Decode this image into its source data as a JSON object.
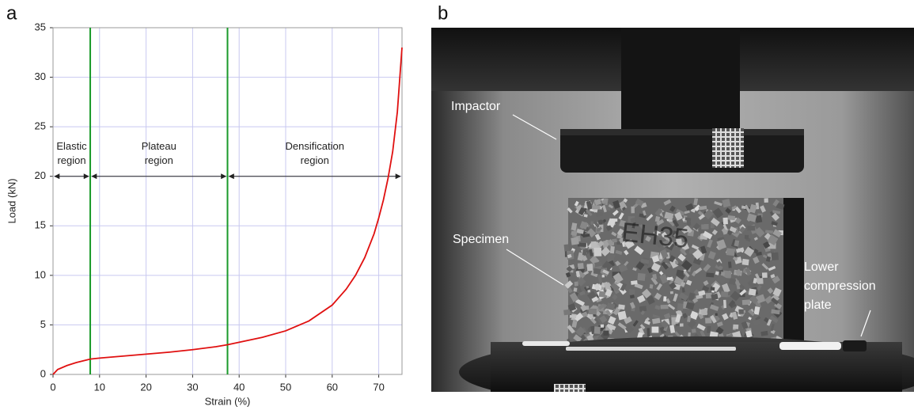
{
  "chart_data": {
    "type": "line",
    "panel_label": "a",
    "x_label": "Strain (%)",
    "y_label": "Load (kN)",
    "x": [
      0,
      1,
      3,
      5,
      8,
      10,
      15,
      20,
      25,
      30,
      35,
      37.5,
      40,
      45,
      50,
      55,
      60,
      63,
      65,
      67,
      69,
      70,
      71,
      72,
      73,
      74,
      75
    ],
    "values": [
      0,
      0.5,
      0.9,
      1.2,
      1.55,
      1.65,
      1.85,
      2.05,
      2.25,
      2.5,
      2.8,
      3.0,
      3.25,
      3.75,
      4.4,
      5.4,
      7.0,
      8.6,
      10.0,
      11.8,
      14.2,
      15.8,
      17.6,
      19.8,
      22.5,
      26.5,
      33
    ],
    "color": "#e01010",
    "xlim": [
      0,
      75
    ],
    "xticks": [
      0,
      10,
      20,
      30,
      40,
      50,
      60,
      70
    ],
    "ylim": [
      0,
      35
    ],
    "yticks": [
      0,
      5,
      10,
      15,
      20,
      25,
      30,
      35
    ],
    "grid": true,
    "grid_color": "#c8c8f0",
    "vlines": [
      8,
      37.5
    ],
    "vline_color": "#1a9a2a",
    "arrow_y": 20,
    "regions": [
      {
        "label": [
          "Elastic",
          "region"
        ],
        "from": 0,
        "to": 8
      },
      {
        "label": [
          "Plateau",
          "region"
        ],
        "from": 8,
        "to": 37.5
      },
      {
        "label": [
          "Densification",
          "region"
        ],
        "from": 37.5,
        "to": 75
      }
    ]
  },
  "photo": {
    "panel_label": "b",
    "labels": [
      [
        "Impactor"
      ],
      [
        "Specimen"
      ],
      [
        "Lower",
        "compression",
        "plate"
      ]
    ]
  }
}
